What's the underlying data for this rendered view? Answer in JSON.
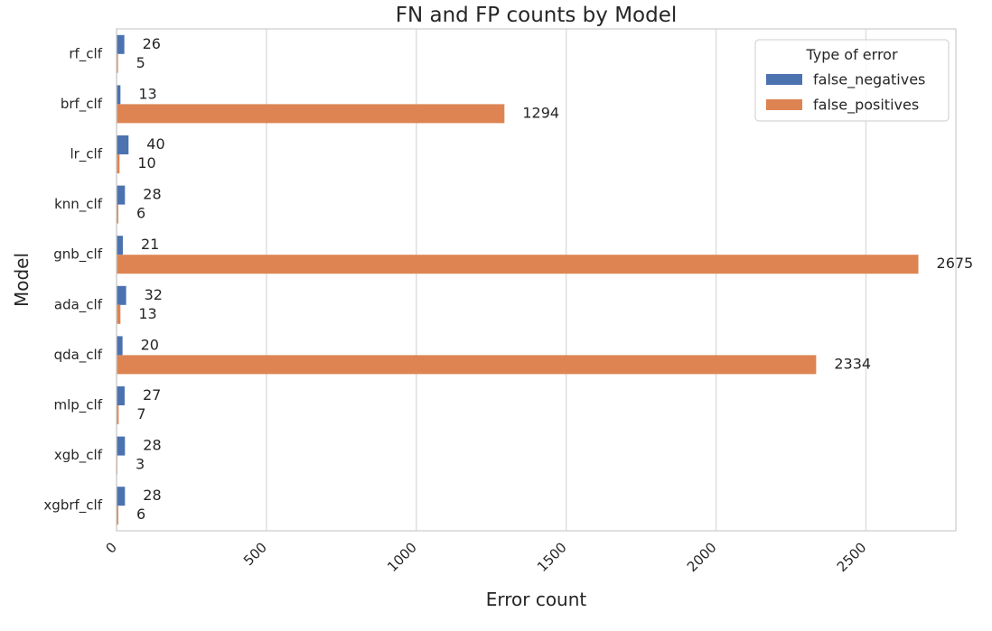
{
  "chart_data": {
    "type": "bar",
    "orientation": "horizontal",
    "title": "FN and FP counts by Model",
    "xlabel": "Error count",
    "ylabel": "Model",
    "xlim": [
      0,
      2800
    ],
    "x_ticks": [
      0,
      500,
      1000,
      1500,
      2000,
      2500
    ],
    "categories": [
      "rf_clf",
      "brf_clf",
      "lr_clf",
      "knn_clf",
      "gnb_clf",
      "ada_clf",
      "qda_clf",
      "mlp_clf",
      "xgb_clf",
      "xgbrf_clf"
    ],
    "series": [
      {
        "name": "false_negatives",
        "color": "#4c72b0",
        "values": [
          26,
          13,
          40,
          28,
          21,
          32,
          20,
          27,
          28,
          28
        ]
      },
      {
        "name": "false_positives",
        "color": "#dd8452",
        "values": [
          5,
          1294,
          10,
          6,
          2675,
          13,
          2334,
          7,
          3,
          6
        ]
      }
    ],
    "legend": {
      "title": "Type of error",
      "position": "top-right"
    },
    "grid": "vertical"
  }
}
